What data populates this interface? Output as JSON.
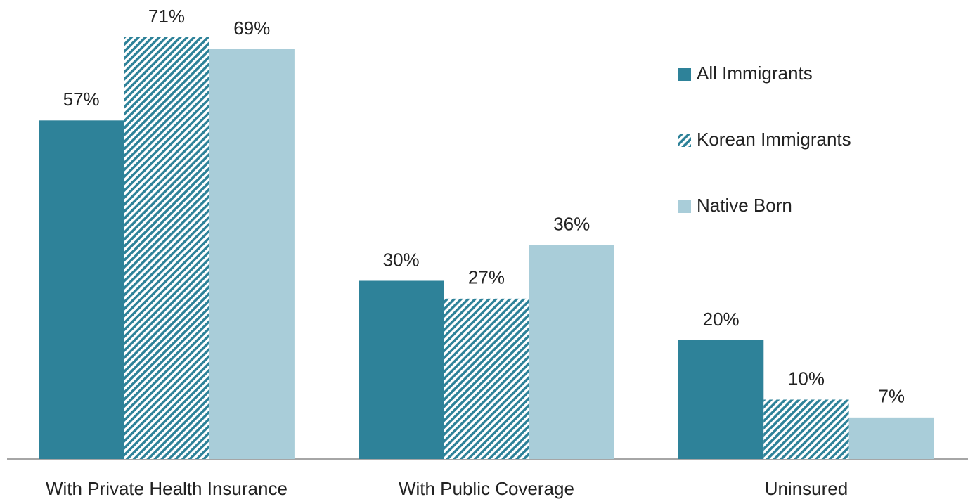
{
  "chart_data": {
    "type": "bar",
    "categories": [
      "With Private Health Insurance",
      "With Public Coverage",
      "Uninsured"
    ],
    "series": [
      {
        "name": "All Immigrants",
        "color": "#2e8299",
        "hatch": false,
        "values": [
          57,
          30,
          20
        ],
        "value_labels": [
          "57%",
          "30%",
          "20%"
        ]
      },
      {
        "name": "Korean Immigrants",
        "color": "#2e8299",
        "hatch": true,
        "values": [
          71,
          27,
          10
        ],
        "value_labels": [
          "71%",
          "27%",
          "10%"
        ]
      },
      {
        "name": "Native Born",
        "color": "#a9cdd9",
        "hatch": false,
        "values": [
          69,
          36,
          7
        ],
        "value_labels": [
          "69%",
          "36%",
          "7%"
        ]
      }
    ],
    "legend": "upper right"
  }
}
